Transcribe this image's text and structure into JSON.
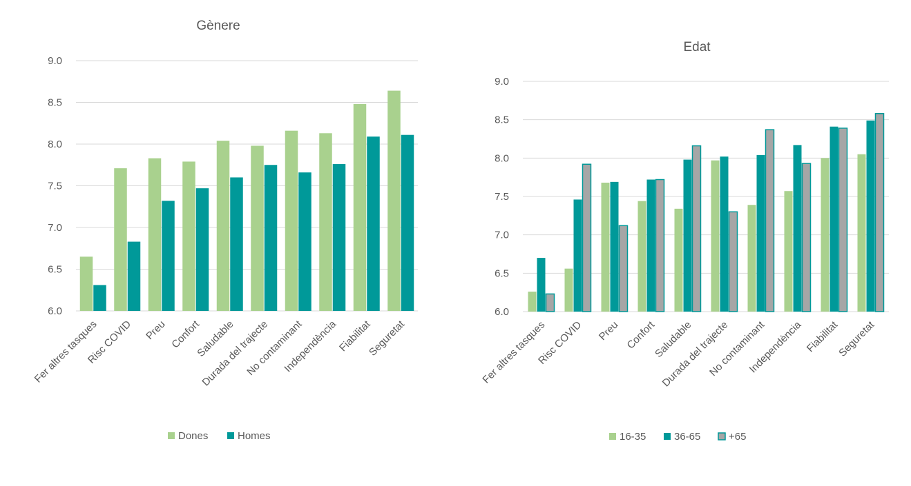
{
  "chart_data": [
    {
      "type": "bar",
      "title": "Gènere",
      "categories": [
        "Fer altres tasques",
        "Risc COVID",
        "Preu",
        "Confort",
        "Saludable",
        "Durada del trajecte",
        "No contaminant",
        "Independència",
        "Fiabilitat",
        "Seguretat"
      ],
      "series": [
        {
          "name": "Dones",
          "color": "#a9d18e",
          "values": [
            6.65,
            7.71,
            7.83,
            7.79,
            8.04,
            7.98,
            8.16,
            8.13,
            8.48,
            8.64
          ]
        },
        {
          "name": "Homes",
          "color": "#009999",
          "values": [
            6.31,
            6.83,
            7.32,
            7.47,
            7.6,
            7.75,
            7.66,
            7.76,
            8.09,
            8.11
          ]
        }
      ],
      "ylim": [
        6.0,
        9.0
      ],
      "yticks": [
        "6.0",
        "6.5",
        "7.0",
        "7.5",
        "8.0",
        "8.5",
        "9.0"
      ],
      "grid": true,
      "legend_position": "bottom"
    },
    {
      "type": "bar",
      "title": "Edat",
      "categories": [
        "Fer altres tasques",
        "Risc COVID",
        "Preu",
        "Confort",
        "Saludable",
        "Durada del trajecte",
        "No contaminant",
        "Independència",
        "Fiabilitat",
        "Seguretat"
      ],
      "series": [
        {
          "name": "16-35",
          "color": "#a9d18e",
          "values": [
            6.26,
            6.56,
            7.68,
            7.44,
            7.34,
            7.97,
            7.39,
            7.57,
            8.0,
            8.05
          ]
        },
        {
          "name": "36-65",
          "color": "#009999",
          "values": [
            6.7,
            7.46,
            7.69,
            7.72,
            7.98,
            8.02,
            8.04,
            8.17,
            8.41,
            8.49
          ]
        },
        {
          "name": "+65",
          "color": "#a6a6a6",
          "stroke": "#009999",
          "values": [
            6.23,
            7.92,
            7.12,
            7.72,
            8.16,
            7.3,
            8.37,
            7.93,
            8.39,
            8.58
          ]
        }
      ],
      "ylim": [
        6.0,
        9.0
      ],
      "yticks": [
        "6.0",
        "6.5",
        "7.0",
        "7.5",
        "8.0",
        "8.5",
        "9.0"
      ],
      "grid": true,
      "legend_position": "bottom"
    }
  ]
}
